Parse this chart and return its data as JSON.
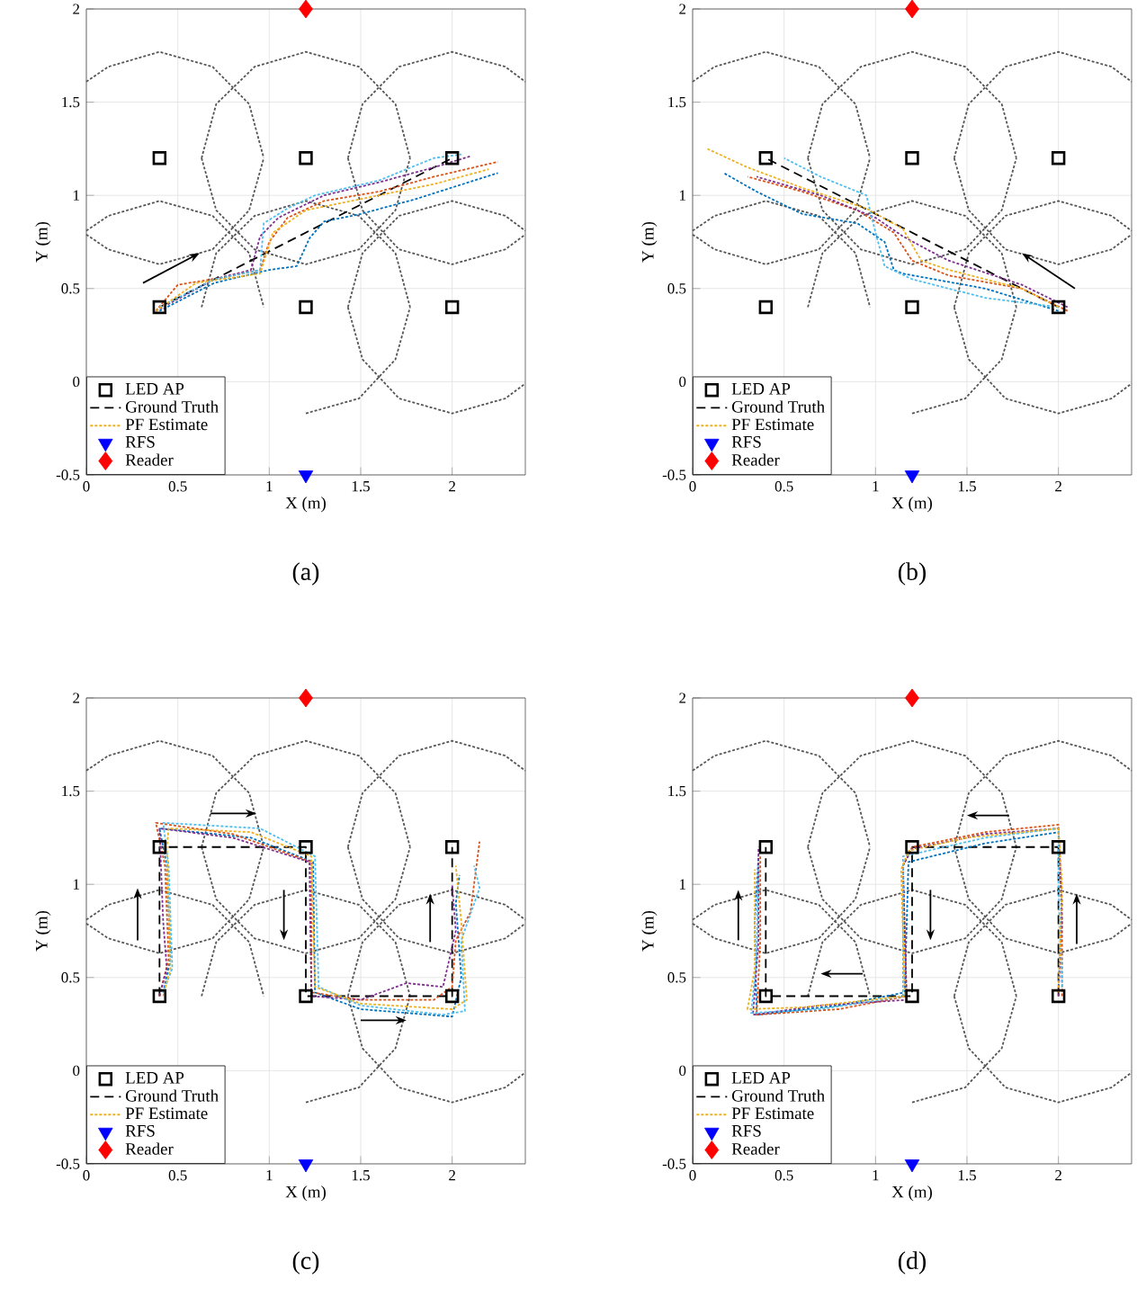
{
  "chart_data": [
    {
      "type": "line",
      "xlabel": "X (m)",
      "ylabel": "Y (m)",
      "annotations": [
        "(a)"
      ],
      "xlim": [
        0,
        2.4
      ],
      "ylim": [
        -0.5,
        2
      ],
      "xticks": [
        0,
        0.5,
        1,
        1.5,
        2
      ],
      "yticks": [
        -0.5,
        0,
        0.5,
        1,
        1.5,
        2
      ],
      "grid": true,
      "legend": "bottom left",
      "series": [
        {
          "color": "#555555",
          "line_style": "dotted",
          "x": [
            0,
            0.12,
            0.4,
            0.69,
            0.89,
            0.97,
            null,
            0,
            0.12,
            0.4,
            0.69,
            0.89,
            0.97,
            null,
            0.63,
            0.71,
            0.92,
            1.2,
            1.49,
            1.69,
            1.77,
            null,
            0.63,
            0.71,
            0.92,
            1.2,
            1.49,
            1.69,
            1.77,
            null,
            1.43,
            1.51,
            1.71,
            2,
            2.29,
            2.4,
            null,
            1.43,
            1.51,
            1.71,
            2,
            2.29,
            2.4,
            null,
            0,
            0.12,
            0.4,
            0.69,
            0.89,
            0.97,
            null,
            0.63,
            0.71,
            0.92,
            1.2,
            1.49,
            1.69,
            1.77,
            null,
            1.2,
            1.49,
            1.69,
            1.77,
            null,
            1.43,
            1.51,
            1.71,
            2,
            2.29,
            2.4,
            null,
            1.43,
            1.51,
            1.71,
            2,
            2.29,
            2.4
          ],
          "values": [
            1.61,
            1.69,
            1.77,
            1.69,
            1.49,
            1.2,
            null,
            0.79,
            0.71,
            0.63,
            0.71,
            0.92,
            1.2,
            null,
            1.2,
            1.49,
            1.69,
            1.77,
            1.69,
            1.49,
            1.2,
            null,
            1.2,
            0.92,
            0.71,
            0.63,
            0.71,
            0.92,
            1.2,
            null,
            1.2,
            1.49,
            1.69,
            1.77,
            1.69,
            1.61,
            null,
            1.2,
            0.92,
            0.71,
            0.63,
            0.71,
            0.79,
            null,
            0.81,
            0.89,
            0.97,
            0.89,
            0.69,
            0.4,
            null,
            0.4,
            0.69,
            0.89,
            0.97,
            0.89,
            0.69,
            0.4,
            null,
            -0.17,
            -0.09,
            0.12,
            0.4,
            null,
            0.4,
            0.69,
            0.89,
            0.97,
            0.89,
            0.81,
            null,
            0.4,
            0.12,
            -0.09,
            -0.17,
            -0.09,
            -0.01
          ]
        },
        {
          "name": "LED AP",
          "type": "scatter",
          "marker": "square",
          "color": "#000000",
          "x": [
            0.4,
            1.2,
            2,
            0.4,
            1.2,
            2
          ],
          "values": [
            1.2,
            1.2,
            1.2,
            0.4,
            0.4,
            0.4
          ]
        },
        {
          "name": "Ground Truth",
          "line_style": "dashed",
          "color": "#000000",
          "x": [
            0.4,
            2
          ],
          "values": [
            0.4,
            1.2
          ]
        },
        {
          "line_style": "dotted",
          "color": "#0072bd",
          "x": [
            0.4,
            0.7,
            1.0,
            1.15,
            1.22,
            1.3,
            1.5,
            1.8,
            2.25
          ],
          "values": [
            0.38,
            0.53,
            0.6,
            0.62,
            0.77,
            0.86,
            0.9,
            0.98,
            1.12
          ]
        },
        {
          "line_style": "dotted",
          "color": "#d95319",
          "x": [
            0.38,
            0.5,
            0.75,
            0.95,
            1.0,
            1.1,
            1.3,
            1.6,
            1.9,
            2.25
          ],
          "values": [
            0.38,
            0.52,
            0.56,
            0.6,
            0.75,
            0.88,
            0.97,
            1.02,
            1.1,
            1.18
          ]
        },
        {
          "line_style": "dotted",
          "color": "#7e2f8e",
          "x": [
            0.38,
            0.7,
            0.9,
            0.95,
            1.05,
            1.3,
            1.6,
            1.9,
            2.1
          ],
          "values": [
            0.38,
            0.55,
            0.6,
            0.78,
            0.88,
            1.0,
            1.07,
            1.15,
            1.21
          ]
        },
        {
          "line_style": "dotted",
          "color": "#4dbeee",
          "x": [
            0.4,
            0.7,
            0.95,
            0.97,
            1.1,
            1.25,
            1.6,
            1.9,
            2.05
          ],
          "values": [
            0.4,
            0.55,
            0.6,
            0.85,
            0.93,
            1.0,
            1.08,
            1.2,
            1.22
          ]
        },
        {
          "name": "PF Estimate",
          "line_style": "dotted",
          "color": "#edb120",
          "x": [
            0.38,
            0.6,
            0.95,
            1.02,
            1.2,
            1.5,
            1.9,
            2.2
          ],
          "values": [
            0.38,
            0.53,
            0.58,
            0.8,
            0.92,
            0.98,
            1.06,
            1.14
          ]
        },
        {
          "name": "RFS",
          "type": "scatter",
          "marker": "triangle",
          "color": "#0000ff",
          "x": [
            1.2
          ],
          "values": [
            -0.5
          ]
        },
        {
          "name": "Reader",
          "type": "scatter",
          "marker": "diamond",
          "color": "#ff0000",
          "x": [
            1.2
          ],
          "values": [
            2
          ]
        }
      ]
    },
    {
      "type": "line",
      "xlabel": "X (m)",
      "ylabel": "Y (m)",
      "annotations": [
        "(b)"
      ],
      "xlim": [
        0,
        2.4
      ],
      "ylim": [
        -0.5,
        2
      ],
      "xticks": [
        0,
        0.5,
        1,
        1.5,
        2
      ],
      "yticks": [
        -0.5,
        0,
        0.5,
        1,
        1.5,
        2
      ],
      "grid": true,
      "legend": "bottom left",
      "series": [
        {
          "color": "#555555",
          "line_style": "dotted",
          "x": [
            0,
            0.12,
            0.4,
            0.69,
            0.89,
            0.97,
            null,
            0,
            0.12,
            0.4,
            0.69,
            0.89,
            0.97,
            null,
            0.63,
            0.71,
            0.92,
            1.2,
            1.49,
            1.69,
            1.77,
            null,
            0.63,
            0.71,
            0.92,
            1.2,
            1.49,
            1.69,
            1.77,
            null,
            1.43,
            1.51,
            1.71,
            2,
            2.29,
            2.4,
            null,
            1.43,
            1.51,
            1.71,
            2,
            2.29,
            2.4,
            null,
            0,
            0.12,
            0.4,
            0.69,
            0.89,
            0.97,
            null,
            0.63,
            0.71,
            0.92,
            1.2,
            1.49,
            1.69,
            1.77,
            null,
            1.2,
            1.49,
            1.69,
            1.77,
            null,
            1.43,
            1.51,
            1.71,
            2,
            2.29,
            2.4,
            null,
            1.43,
            1.51,
            1.71,
            2,
            2.29,
            2.4
          ],
          "values": [
            1.61,
            1.69,
            1.77,
            1.69,
            1.49,
            1.2,
            null,
            0.79,
            0.71,
            0.63,
            0.71,
            0.92,
            1.2,
            null,
            1.2,
            1.49,
            1.69,
            1.77,
            1.69,
            1.49,
            1.2,
            null,
            1.2,
            0.92,
            0.71,
            0.63,
            0.71,
            0.92,
            1.2,
            null,
            1.2,
            1.49,
            1.69,
            1.77,
            1.69,
            1.61,
            null,
            1.2,
            0.92,
            0.71,
            0.63,
            0.71,
            0.79,
            null,
            0.81,
            0.89,
            0.97,
            0.89,
            0.69,
            0.4,
            null,
            0.4,
            0.69,
            0.89,
            0.97,
            0.89,
            0.69,
            0.4,
            null,
            -0.17,
            -0.09,
            0.12,
            0.4,
            null,
            0.4,
            0.69,
            0.89,
            0.97,
            0.89,
            0.81,
            null,
            0.4,
            0.12,
            -0.09,
            -0.17,
            -0.09,
            -0.01
          ]
        },
        {
          "name": "LED AP",
          "type": "scatter",
          "marker": "square",
          "color": "#000000",
          "x": [
            0.4,
            1.2,
            2,
            0.4,
            1.2,
            2
          ],
          "values": [
            1.2,
            1.2,
            1.2,
            0.4,
            0.4,
            0.4
          ]
        },
        {
          "name": "Ground Truth",
          "line_style": "dashed",
          "color": "#000000",
          "x": [
            2,
            0.4
          ],
          "values": [
            0.4,
            1.2
          ]
        },
        {
          "line_style": "dotted",
          "color": "#0072bd",
          "x": [
            2.0,
            1.6,
            1.15,
            1.1,
            1.05,
            0.9,
            0.6,
            0.35,
            0.17
          ],
          "values": [
            0.38,
            0.5,
            0.58,
            0.6,
            0.75,
            0.85,
            0.9,
            1.02,
            1.12
          ]
        },
        {
          "line_style": "dotted",
          "color": "#d95319",
          "x": [
            2.05,
            1.8,
            1.4,
            1.2,
            1.1,
            0.9,
            0.6,
            0.3
          ],
          "values": [
            0.38,
            0.5,
            0.57,
            0.65,
            0.8,
            0.92,
            1.02,
            1.1
          ]
        },
        {
          "line_style": "dotted",
          "color": "#7e2f8e",
          "x": [
            2.05,
            1.8,
            1.4,
            1.3,
            1.15,
            1.0,
            0.7,
            0.35
          ],
          "values": [
            0.4,
            0.52,
            0.65,
            0.7,
            0.78,
            0.88,
            1.0,
            1.1
          ]
        },
        {
          "line_style": "dotted",
          "color": "#4dbeee",
          "x": [
            2.0,
            1.6,
            1.2,
            1.05,
            1.0,
            0.95,
            0.7,
            0.5
          ],
          "values": [
            0.4,
            0.45,
            0.55,
            0.62,
            0.8,
            1.0,
            1.1,
            1.2
          ]
        },
        {
          "name": "PF Estimate",
          "line_style": "dotted",
          "color": "#edb120",
          "x": [
            2.0,
            1.8,
            1.4,
            1.25,
            1.15,
            0.95,
            0.6,
            0.3,
            0.08
          ],
          "values": [
            0.4,
            0.5,
            0.6,
            0.65,
            0.82,
            0.93,
            1.04,
            1.15,
            1.25
          ]
        },
        {
          "name": "RFS",
          "type": "scatter",
          "marker": "triangle",
          "color": "#0000ff",
          "x": [
            1.2
          ],
          "values": [
            -0.5
          ]
        },
        {
          "name": "Reader",
          "type": "scatter",
          "marker": "diamond",
          "color": "#ff0000",
          "x": [
            1.2
          ],
          "values": [
            2
          ]
        }
      ]
    },
    {
      "type": "line",
      "xlabel": "X (m)",
      "ylabel": "Y (m)",
      "annotations": [
        "(c)"
      ],
      "xlim": [
        0,
        2.4
      ],
      "ylim": [
        -0.5,
        2
      ],
      "xticks": [
        0,
        0.5,
        1,
        1.5,
        2
      ],
      "yticks": [
        -0.5,
        0,
        0.5,
        1,
        1.5,
        2
      ],
      "grid": true,
      "legend": "bottom left",
      "series": [
        {
          "color": "#555555",
          "line_style": "dotted",
          "x": [
            0,
            0.12,
            0.4,
            0.69,
            0.89,
            0.97,
            null,
            0,
            0.12,
            0.4,
            0.69,
            0.89,
            0.97,
            null,
            0.63,
            0.71,
            0.92,
            1.2,
            1.49,
            1.69,
            1.77,
            null,
            0.63,
            0.71,
            0.92,
            1.2,
            1.49,
            1.69,
            1.77,
            null,
            1.43,
            1.51,
            1.71,
            2,
            2.29,
            2.4,
            null,
            1.43,
            1.51,
            1.71,
            2,
            2.29,
            2.4,
            null,
            0,
            0.12,
            0.4,
            0.69,
            0.89,
            0.97,
            null,
            0.63,
            0.71,
            0.92,
            1.2,
            1.49,
            1.69,
            1.77,
            null,
            1.2,
            1.49,
            1.69,
            1.77,
            null,
            1.43,
            1.51,
            1.71,
            2,
            2.29,
            2.4,
            null,
            1.43,
            1.51,
            1.71,
            2,
            2.29,
            2.4
          ],
          "values": [
            1.61,
            1.69,
            1.77,
            1.69,
            1.49,
            1.2,
            null,
            0.79,
            0.71,
            0.63,
            0.71,
            0.92,
            1.2,
            null,
            1.2,
            1.49,
            1.69,
            1.77,
            1.69,
            1.49,
            1.2,
            null,
            1.2,
            0.92,
            0.71,
            0.63,
            0.71,
            0.92,
            1.2,
            null,
            1.2,
            1.49,
            1.69,
            1.77,
            1.69,
            1.61,
            null,
            1.2,
            0.92,
            0.71,
            0.63,
            0.71,
            0.79,
            null,
            0.81,
            0.89,
            0.97,
            0.89,
            0.69,
            0.4,
            null,
            0.4,
            0.69,
            0.89,
            0.97,
            0.89,
            0.69,
            0.4,
            null,
            -0.17,
            -0.09,
            0.12,
            0.4,
            null,
            0.4,
            0.69,
            0.89,
            0.97,
            0.89,
            0.81,
            null,
            0.4,
            0.12,
            -0.09,
            -0.17,
            -0.09,
            -0.01
          ]
        },
        {
          "name": "LED AP",
          "type": "scatter",
          "marker": "square",
          "color": "#000000",
          "x": [
            0.4,
            1.2,
            2,
            0.4,
            1.2,
            2
          ],
          "values": [
            1.2,
            1.2,
            1.2,
            0.4,
            0.4,
            0.4
          ]
        },
        {
          "name": "Ground Truth",
          "line_style": "dashed",
          "color": "#000000",
          "x": [
            0.4,
            0.4,
            1.2,
            1.2,
            2,
            2
          ],
          "values": [
            0.4,
            1.2,
            1.2,
            0.4,
            0.4,
            1.2
          ]
        },
        {
          "line_style": "dotted",
          "color": "#0072bd",
          "x": [
            0.42,
            0.46,
            0.44,
            0.4,
            0.9,
            1.24,
            1.25,
            1.5,
            2.0,
            2.05,
            2.02,
            2.04
          ],
          "values": [
            0.42,
            0.6,
            1.1,
            1.3,
            1.25,
            1.12,
            0.42,
            0.33,
            0.29,
            0.5,
            0.9,
            1.05
          ]
        },
        {
          "line_style": "dotted",
          "color": "#d95319",
          "x": [
            0.4,
            0.45,
            0.43,
            0.38,
            0.8,
            1.23,
            1.23,
            1.5,
            1.9,
            2.0,
            2.02,
            2.1,
            2.15
          ],
          "values": [
            0.4,
            0.6,
            1.1,
            1.33,
            1.27,
            1.12,
            0.42,
            0.38,
            0.38,
            0.45,
            0.7,
            0.85,
            1.23
          ]
        },
        {
          "line_style": "dotted",
          "color": "#7e2f8e",
          "x": [
            0.4,
            0.44,
            0.42,
            0.4,
            0.8,
            1.22,
            1.23,
            1.5,
            1.75,
            1.95,
            2.02,
            2.0
          ],
          "values": [
            0.4,
            0.55,
            0.8,
            1.3,
            1.25,
            1.12,
            0.4,
            0.38,
            0.47,
            0.45,
            0.75,
            1.0
          ]
        },
        {
          "line_style": "dotted",
          "color": "#4dbeee",
          "x": [
            0.42,
            0.47,
            0.45,
            0.42,
            0.95,
            1.25,
            1.27,
            1.5,
            1.95,
            2.07,
            2.05,
            2.15,
            2.12
          ],
          "values": [
            0.42,
            0.55,
            1.1,
            1.33,
            1.3,
            1.15,
            0.45,
            0.35,
            0.3,
            0.32,
            0.7,
            0.98,
            1.1
          ]
        },
        {
          "name": "PF Estimate",
          "line_style": "dotted",
          "color": "#edb120",
          "x": [
            0.42,
            0.46,
            0.44,
            0.45,
            0.9,
            1.23,
            1.25,
            1.5,
            2.0,
            2.08,
            2.05,
            2.02
          ],
          "values": [
            0.4,
            0.55,
            1.2,
            1.3,
            1.28,
            1.15,
            0.45,
            0.36,
            0.33,
            0.38,
            0.8,
            1.1
          ]
        },
        {
          "name": "RFS",
          "type": "scatter",
          "marker": "triangle",
          "color": "#0000ff",
          "x": [
            1.2
          ],
          "values": [
            -0.5
          ]
        },
        {
          "name": "Reader",
          "type": "scatter",
          "marker": "diamond",
          "color": "#ff0000",
          "x": [
            1.2
          ],
          "values": [
            2
          ]
        }
      ]
    },
    {
      "type": "line",
      "xlabel": "X (m)",
      "ylabel": "Y (m)",
      "annotations": [
        "(d)"
      ],
      "xlim": [
        0,
        2.4
      ],
      "ylim": [
        -0.5,
        2
      ],
      "xticks": [
        0,
        0.5,
        1,
        1.5,
        2
      ],
      "yticks": [
        -0.5,
        0,
        0.5,
        1,
        1.5,
        2
      ],
      "grid": true,
      "legend": "bottom left",
      "series": [
        {
          "color": "#555555",
          "line_style": "dotted",
          "x": [
            0,
            0.12,
            0.4,
            0.69,
            0.89,
            0.97,
            null,
            0,
            0.12,
            0.4,
            0.69,
            0.89,
            0.97,
            null,
            0.63,
            0.71,
            0.92,
            1.2,
            1.49,
            1.69,
            1.77,
            null,
            0.63,
            0.71,
            0.92,
            1.2,
            1.49,
            1.69,
            1.77,
            null,
            1.43,
            1.51,
            1.71,
            2,
            2.29,
            2.4,
            null,
            1.43,
            1.51,
            1.71,
            2,
            2.29,
            2.4,
            null,
            0,
            0.12,
            0.4,
            0.69,
            0.89,
            0.97,
            null,
            0.63,
            0.71,
            0.92,
            1.2,
            1.49,
            1.69,
            1.77,
            null,
            1.2,
            1.49,
            1.69,
            1.77,
            null,
            1.43,
            1.51,
            1.71,
            2,
            2.29,
            2.4,
            null,
            1.43,
            1.51,
            1.71,
            2,
            2.29,
            2.4
          ],
          "values": [
            1.61,
            1.69,
            1.77,
            1.69,
            1.49,
            1.2,
            null,
            0.79,
            0.71,
            0.63,
            0.71,
            0.92,
            1.2,
            null,
            1.2,
            1.49,
            1.69,
            1.77,
            1.69,
            1.49,
            1.2,
            null,
            1.2,
            0.92,
            0.71,
            0.63,
            0.71,
            0.92,
            1.2,
            null,
            1.2,
            1.49,
            1.69,
            1.77,
            1.69,
            1.61,
            null,
            1.2,
            0.92,
            0.71,
            0.63,
            0.71,
            0.79,
            null,
            0.81,
            0.89,
            0.97,
            0.89,
            0.69,
            0.4,
            null,
            0.4,
            0.69,
            0.89,
            0.97,
            0.89,
            0.69,
            0.4,
            null,
            -0.17,
            -0.09,
            0.12,
            0.4,
            null,
            0.4,
            0.69,
            0.89,
            0.97,
            0.89,
            0.81,
            null,
            0.4,
            0.12,
            -0.09,
            -0.17,
            -0.09,
            -0.01
          ]
        },
        {
          "name": "LED AP",
          "type": "scatter",
          "marker": "square",
          "color": "#000000",
          "x": [
            0.4,
            1.2,
            2,
            0.4,
            1.2,
            2
          ],
          "values": [
            1.2,
            1.2,
            1.2,
            0.4,
            0.4,
            0.4
          ]
        },
        {
          "name": "Ground Truth",
          "line_style": "dashed",
          "color": "#000000",
          "x": [
            2,
            2,
            1.2,
            1.2,
            0.4,
            0.4
          ],
          "values": [
            0.4,
            1.2,
            1.2,
            0.4,
            0.4,
            1.2
          ]
        },
        {
          "line_style": "dotted",
          "color": "#0072bd",
          "x": [
            2.0,
            2.02,
            2.0,
            1.6,
            1.18,
            1.16,
            0.8,
            0.35,
            0.34,
            0.36
          ],
          "values": [
            0.45,
            0.8,
            1.28,
            1.22,
            1.12,
            0.42,
            0.35,
            0.3,
            0.8,
            1.15
          ]
        },
        {
          "line_style": "dotted",
          "color": "#d95319",
          "x": [
            2.02,
            2.02,
            2.0,
            1.6,
            1.2,
            1.15,
            1.17,
            0.8,
            0.35,
            0.37,
            0.37
          ],
          "values": [
            0.4,
            0.8,
            1.32,
            1.28,
            1.2,
            1.1,
            0.4,
            0.33,
            0.3,
            0.7,
            1.15
          ]
        },
        {
          "line_style": "dotted",
          "color": "#7e2f8e",
          "x": [
            2.0,
            2.02,
            2.0,
            1.6,
            1.2,
            1.15,
            1.17,
            0.7,
            0.33,
            0.36,
            0.36
          ],
          "values": [
            0.4,
            0.9,
            1.3,
            1.27,
            1.19,
            1.1,
            0.38,
            0.35,
            0.3,
            0.7,
            1.2
          ]
        },
        {
          "line_style": "dotted",
          "color": "#4dbeee",
          "x": [
            2.02,
            2.0,
            2.0,
            1.6,
            1.15,
            1.15,
            0.7,
            0.32,
            0.35,
            0.36
          ],
          "values": [
            0.45,
            1.0,
            1.3,
            1.25,
            1.15,
            0.4,
            0.33,
            0.31,
            0.6,
            1.1
          ]
        },
        {
          "name": "PF Estimate",
          "line_style": "dotted",
          "color": "#edb120",
          "x": [
            2.0,
            2.02,
            2.0,
            1.5,
            1.18,
            1.14,
            1.16,
            0.6,
            0.3,
            0.34,
            0.34
          ],
          "values": [
            0.42,
            1.0,
            1.3,
            1.25,
            1.18,
            1.08,
            0.4,
            0.34,
            0.33,
            0.55,
            1.08
          ]
        },
        {
          "name": "RFS",
          "type": "scatter",
          "marker": "triangle",
          "color": "#0000ff",
          "x": [
            1.2
          ],
          "values": [
            -0.5
          ]
        },
        {
          "name": "Reader",
          "type": "scatter",
          "marker": "diamond",
          "color": "#ff0000",
          "x": [
            1.2
          ],
          "values": [
            2
          ]
        }
      ]
    }
  ]
}
